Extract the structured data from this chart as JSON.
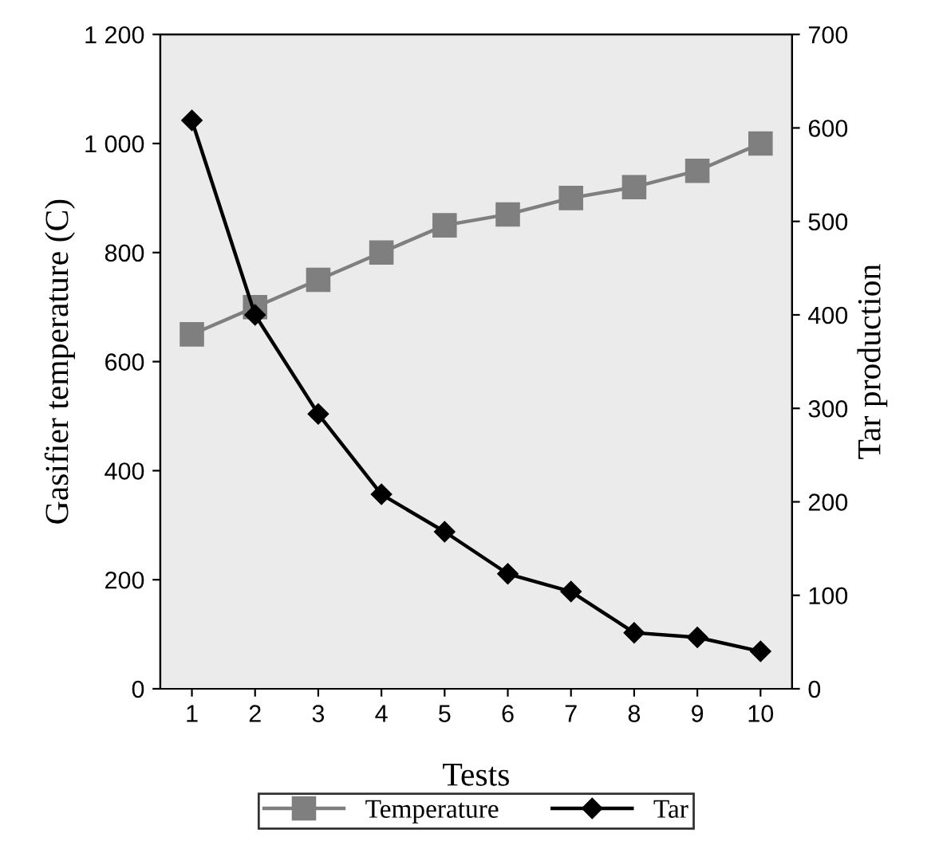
{
  "chart_data": {
    "type": "line",
    "xlabel": "Tests",
    "ylabel": "Gasifier temperature (C)",
    "y2label": "Tar production",
    "categories": [
      "1",
      "2",
      "3",
      "4",
      "5",
      "6",
      "7",
      "8",
      "9",
      "10"
    ],
    "series": [
      {
        "name": "Temperature",
        "color": "#7f7f7f",
        "marker": "square",
        "values": [
          650,
          700,
          750,
          800,
          850,
          870,
          900,
          920,
          950,
          1000
        ]
      },
      {
        "name": "Tar",
        "color": "#000000",
        "marker": "diamond",
        "axis": "y2",
        "values": [
          608,
          400,
          294,
          208,
          168,
          123,
          104,
          60,
          55,
          40
        ]
      }
    ],
    "ylim": [
      0,
      1200
    ],
    "yticks": [
      0,
      200,
      400,
      600,
      800,
      {
        "value": 1000,
        "label": "1 000"
      },
      {
        "value": 1200,
        "label": "1 200"
      }
    ],
    "y2lim": [
      0,
      700
    ],
    "y2ticks": [
      0,
      100,
      200,
      300,
      400,
      500,
      600,
      700
    ],
    "grid": false,
    "legend": "bottom",
    "line_style": "solid"
  }
}
